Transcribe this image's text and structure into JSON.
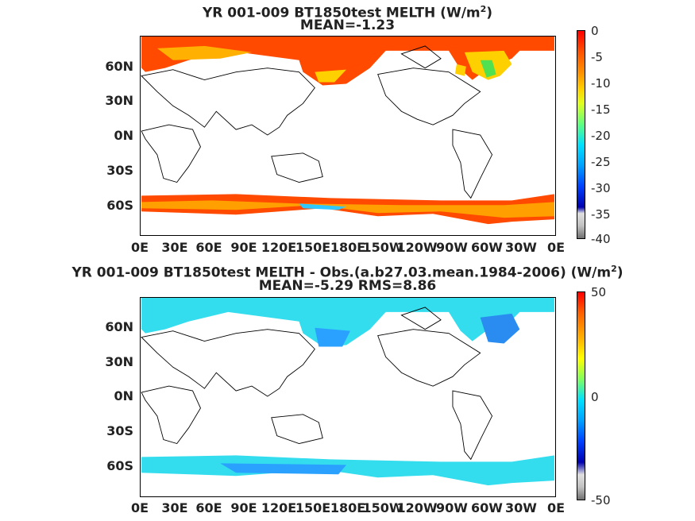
{
  "top_panel": {
    "title_main": "YR 001-009 BT1850test  MELTH (W/m",
    "title_sup": "2",
    "title_close": ")",
    "subtitle": "MEAN=-1.23",
    "colorbar_ticks": [
      "0",
      "-5",
      "-10",
      "-15",
      "-20",
      "-25",
      "-30",
      "-35",
      "-40"
    ]
  },
  "bottom_panel": {
    "title_main": "YR 001-009 BT1850test MELTH - Obs.(a.b27.03.mean.1984-2006) (W/m",
    "title_sup": "2",
    "title_close": ")",
    "subtitle": "MEAN=-5.29 RMS=8.86",
    "colorbar_ticks": [
      "50",
      "0",
      "-50"
    ]
  },
  "lat_labels": [
    "60N",
    "30N",
    "0N",
    "30S",
    "60S"
  ],
  "lon_labels": [
    "0E",
    "30E",
    "60E",
    "90E",
    "120E",
    "150E",
    "180E",
    "150W",
    "120W",
    "90W",
    "60W",
    "30W",
    "0E"
  ],
  "colors": {
    "ice_top": "#ff3a00",
    "ice_diff": "#33ddee",
    "land_outline": "#000000"
  }
}
